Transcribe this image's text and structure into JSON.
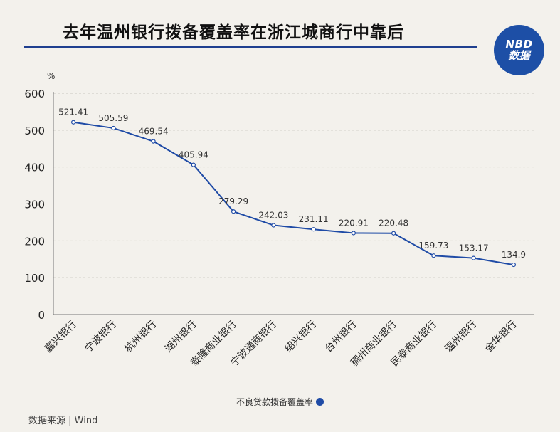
{
  "title": "去年温州银行拨备覆盖率在浙江城商行中靠后",
  "logo": {
    "line1": "NBD",
    "line2": "数据"
  },
  "source": "数据来源 | Wind",
  "colors": {
    "line": "#1f4ba6",
    "rule": "#1f3f8f",
    "background": "#f3f1ec"
  },
  "chart_data": {
    "type": "line",
    "title": "去年温州银行拨备覆盖率在浙江城商行中靠后",
    "ylabel": "%",
    "xlabel": "",
    "ylim": [
      0,
      600
    ],
    "yticks": [
      0,
      100,
      200,
      300,
      400,
      500,
      600
    ],
    "grid": "horizontal-dashed",
    "legend_position": "bottom-center",
    "categories": [
      "嘉兴银行",
      "宁波银行",
      "杭州银行",
      "湖州银行",
      "泰隆商业银行",
      "宁波通商银行",
      "绍兴银行",
      "台州银行",
      "稠州商业银行",
      "民泰商业银行",
      "温州银行",
      "金华银行"
    ],
    "series": [
      {
        "name": "不良贷款拨备覆盖率",
        "values": [
          521.41,
          505.59,
          469.54,
          405.94,
          279.29,
          242.03,
          231.11,
          220.91,
          220.48,
          159.73,
          153.17,
          134.9
        ],
        "labels": [
          "521.41",
          "505.59",
          "469.54",
          "405.94",
          "279.29",
          "242.03",
          "231.11",
          "220.91",
          "220.48",
          "159.73",
          "153.17",
          "134.9"
        ]
      }
    ]
  }
}
